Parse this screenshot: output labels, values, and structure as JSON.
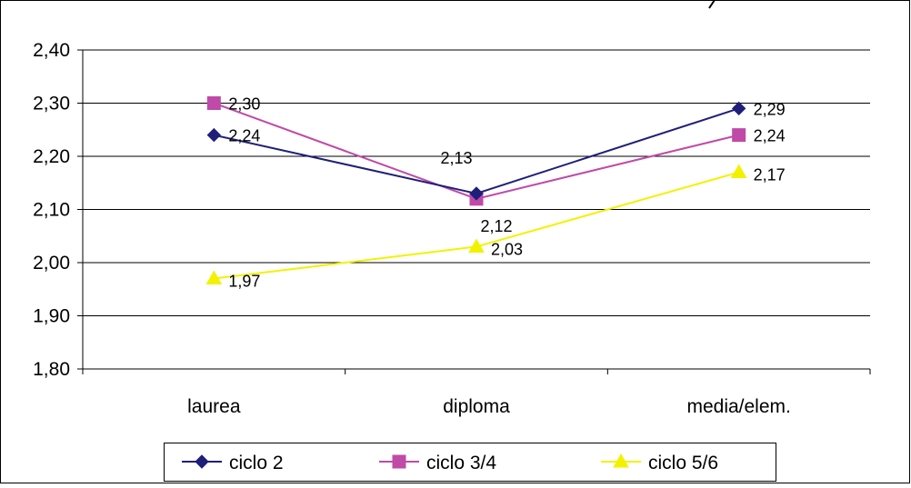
{
  "chart_data": {
    "type": "line",
    "categories": [
      "laurea",
      "diploma",
      "media/elem."
    ],
    "ylim": [
      1.8,
      2.4
    ],
    "yticks": [
      1.8,
      1.9,
      2.0,
      2.1,
      2.2,
      2.3,
      2.4
    ],
    "decimal_separator": ",",
    "grid": true,
    "legend_position": "bottom",
    "series": [
      {
        "name": "ciclo 2",
        "values": [
          2.24,
          2.13,
          2.29
        ],
        "color": "#1f1f7a",
        "marker": "diamond",
        "labels": [
          "2,24",
          "2,13",
          "2,29"
        ]
      },
      {
        "name": "ciclo 3/4",
        "values": [
          2.3,
          2.12,
          2.24
        ],
        "color": "#c04aa8",
        "marker": "square",
        "labels": [
          "2,30",
          "2,12",
          "2,24"
        ]
      },
      {
        "name": "ciclo 5/6",
        "values": [
          1.97,
          2.03,
          2.17
        ],
        "color": "#f2f200",
        "marker": "triangle",
        "labels": [
          "1,97",
          "2,03",
          "2,17"
        ]
      }
    ]
  }
}
